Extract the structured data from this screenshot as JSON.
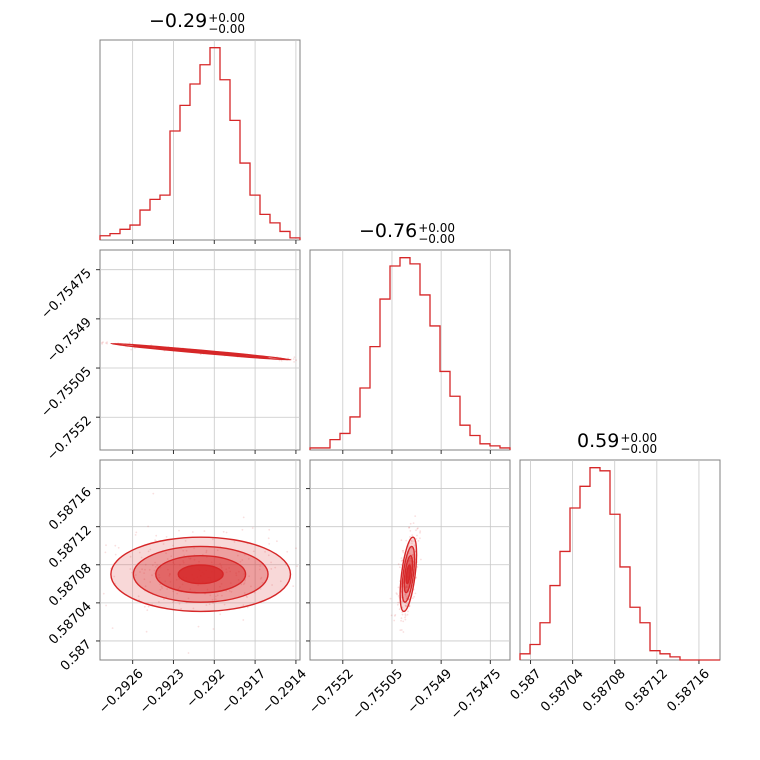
{
  "colors": {
    "accent": "#d62728",
    "axis": "#808080",
    "grid": "#c8c8c8"
  },
  "titles": [
    {
      "base": "−0.29",
      "upper": "+0.00",
      "lower": "−0.00"
    },
    {
      "base": "−0.76",
      "upper": "+0.00",
      "lower": "−0.00"
    },
    {
      "base": "0.59",
      "upper": "+0.00",
      "lower": "−0.00"
    }
  ],
  "chart_data": [
    {
      "type": "histogram",
      "panel": "p0 marginal",
      "title": "−0.29 (+0.00 / −0.00)",
      "xlim": [
        -0.29284,
        -0.29137
      ],
      "x_ticks": [
        -0.2926,
        -0.2923,
        -0.292,
        -0.2917,
        -0.2914
      ],
      "bin_edges_from": -0.29284,
      "bin_width": 7.35e-05,
      "counts": [
        2,
        3,
        5,
        7,
        14,
        19,
        21,
        51,
        63,
        73,
        82,
        90,
        75,
        56,
        36,
        21,
        12,
        8,
        4,
        1
      ]
    },
    {
      "type": "histogram",
      "panel": "p1 marginal",
      "title": "−0.76 (+0.00 / −0.00)",
      "xlim": [
        -0.7553,
        -0.75469
      ],
      "x_ticks": [
        -0.7552,
        -0.75505,
        -0.7549,
        -0.75475
      ],
      "bin_edges_from": -0.7553,
      "bin_width": 3.05e-05,
      "counts": [
        1,
        1,
        5,
        8,
        16,
        30,
        50,
        73,
        89,
        93,
        90,
        75,
        60,
        38,
        26,
        12,
        7,
        3,
        2,
        1
      ]
    },
    {
      "type": "histogram",
      "panel": "p2 marginal",
      "title": "0.59 (+0.00 / −0.00)",
      "xlim": [
        0.58699,
        0.58718
      ],
      "x_ticks": [
        0.587,
        0.58704,
        0.58708,
        0.58712,
        0.58716
      ],
      "bin_edges_from": 0.58699,
      "bin_width": 9.5e-06,
      "counts": [
        2,
        5,
        12,
        24,
        35,
        49,
        56,
        62,
        61,
        47,
        30,
        17,
        12,
        3,
        2,
        1,
        0,
        0,
        0,
        0
      ]
    },
    {
      "type": "contour",
      "panel": "p0 vs p1",
      "xlim": [
        -0.29284,
        -0.29137
      ],
      "ylim": [
        -0.7553,
        -0.75469
      ],
      "x_ticks": [
        -0.2926,
        -0.2923,
        -0.292,
        -0.2917,
        -0.2914
      ],
      "y_ticks": [
        -0.75475,
        -0.7549,
        -0.75505,
        -0.7552
      ],
      "center": [
        -0.2921,
        -0.755
      ],
      "sigma": [
        0.00033,
        1.25e-05
      ],
      "correlation": -0.985,
      "levels_sigma": [
        0.5,
        1,
        1.5,
        2
      ]
    },
    {
      "type": "contour",
      "panel": "p0 vs p2",
      "xlim": [
        -0.29284,
        -0.29137
      ],
      "ylim": [
        0.58698,
        0.58719
      ],
      "x_ticks": [
        -0.2926,
        -0.2923,
        -0.292,
        -0.2917,
        -0.2914
      ],
      "y_ticks": [
        0.58716,
        0.58712,
        0.58708,
        0.58704,
        0.587
      ],
      "center": [
        -0.2921,
        0.58707
      ],
      "sigma": [
        0.00033,
        1.95e-05
      ],
      "correlation": 0.0,
      "levels_sigma": [
        0.5,
        1,
        1.5,
        2
      ]
    },
    {
      "type": "contour",
      "panel": "p1 vs p2",
      "xlim": [
        -0.7553,
        -0.75469
      ],
      "ylim": [
        0.58698,
        0.58719
      ],
      "x_ticks": [
        -0.7552,
        -0.75505,
        -0.7549,
        -0.75475
      ],
      "y_ticks": [
        0.58716,
        0.58712,
        0.58708,
        0.58704,
        0.587
      ],
      "center": [
        -0.755,
        0.58707
      ],
      "sigma": [
        1.25e-05,
        1.95e-05
      ],
      "correlation": 0.55,
      "levels_sigma": [
        0.5,
        1,
        1.5,
        2
      ]
    }
  ]
}
